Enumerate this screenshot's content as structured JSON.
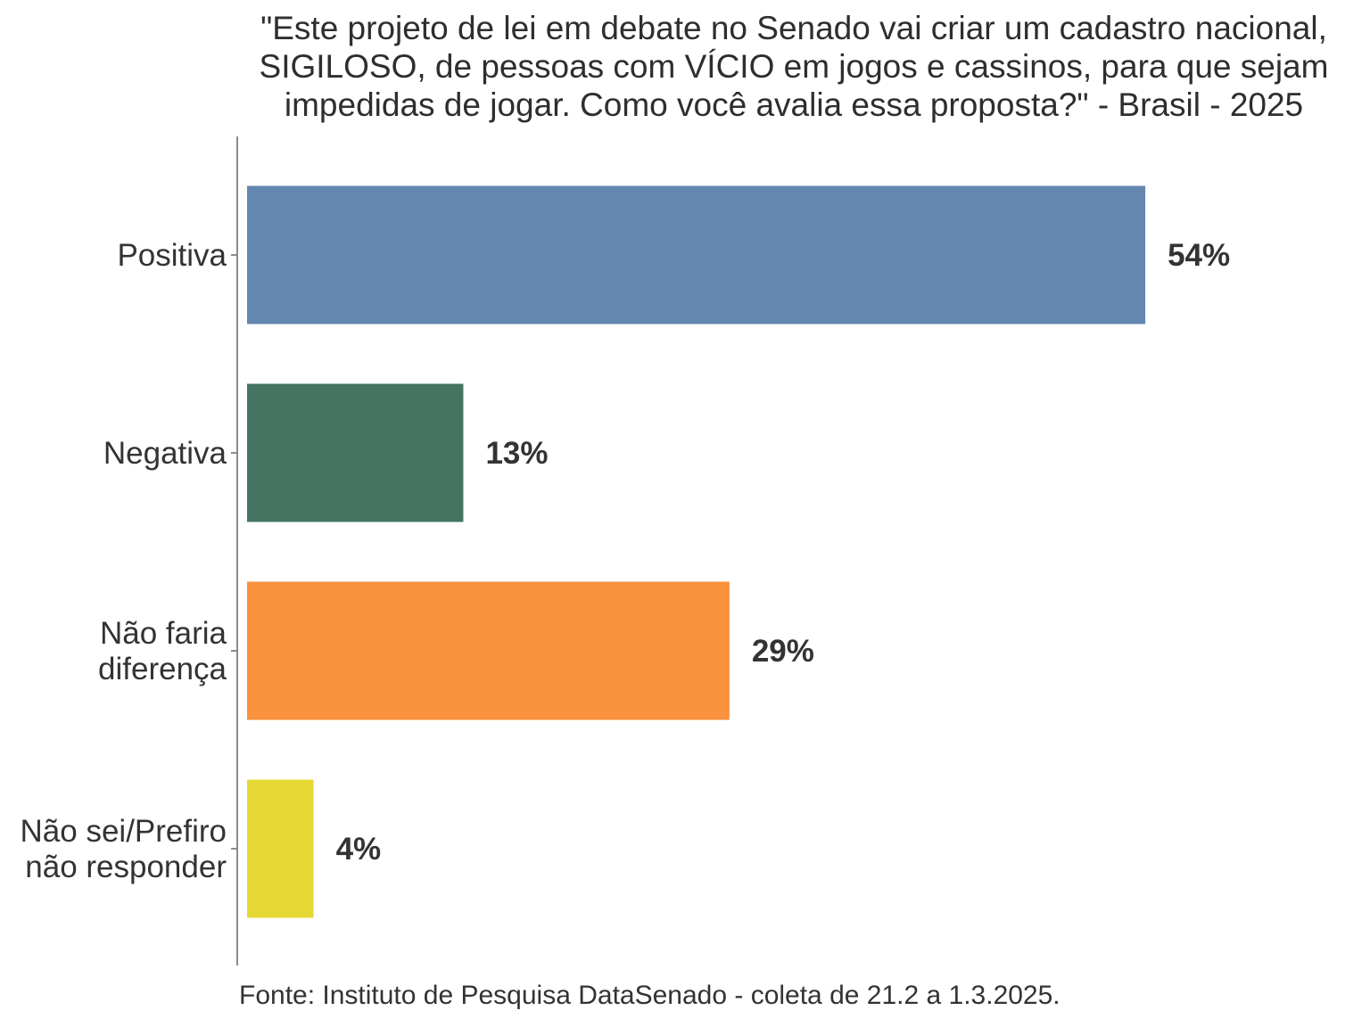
{
  "chart_data": {
    "type": "bar",
    "orientation": "horizontal",
    "title_lines": [
      "\"Este projeto de lei em debate no Senado vai criar um cadastro nacional,",
      "SIGILOSO, de pessoas com VÍCIO em jogos e cassinos, para que sejam",
      "impedidas de jogar. Como você avalia essa proposta?\" - Brasil - 2025"
    ],
    "categories": [
      [
        "Positiva"
      ],
      [
        "Negativa"
      ],
      [
        "Não faria",
        "diferença"
      ],
      [
        "Não sei/Prefiro",
        "não responder"
      ]
    ],
    "values": [
      54,
      13,
      29,
      4
    ],
    "value_labels": [
      "54%",
      "13%",
      "29%",
      "4%"
    ],
    "colors": [
      "#6487b0",
      "#447563",
      "#fa913c",
      "#e5d834"
    ],
    "xlim": [
      0,
      60
    ],
    "grid": false,
    "caption": "Fonte: Instituto de Pesquisa DataSenado - coleta de 21.2 a 1.3.2025."
  }
}
